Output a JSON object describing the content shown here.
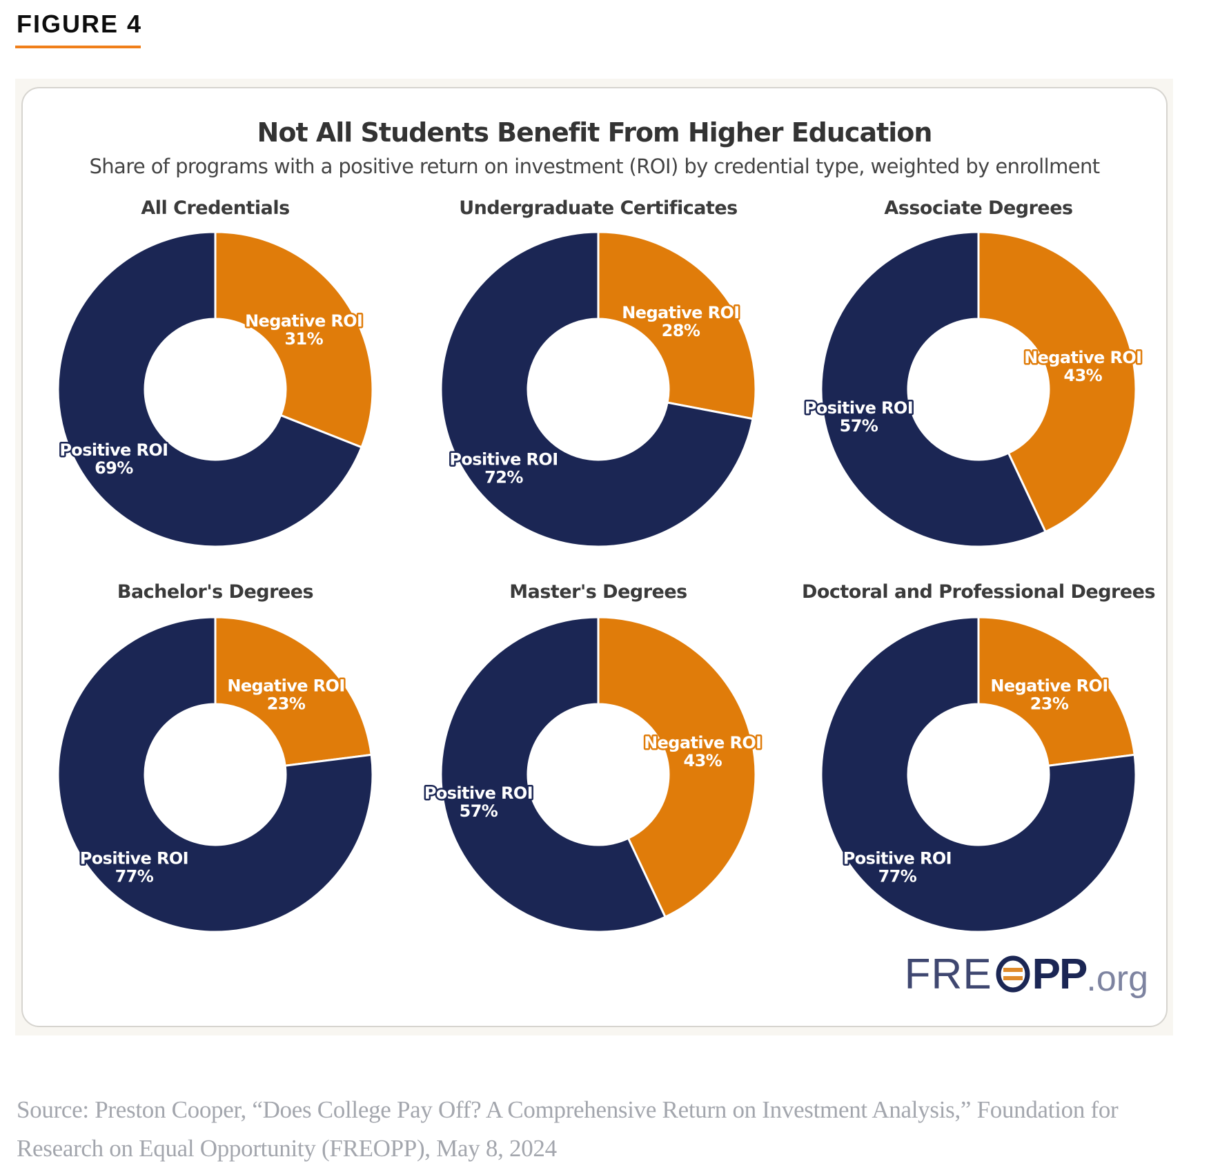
{
  "figure": {
    "label": "FIGURE 4",
    "accent_color": "#f07f1a"
  },
  "chart": {
    "title": "Not All Students Benefit From Higher Education",
    "subtitle": "Share of programs with a positive return on investment (ROI) by credential type, weighted by enrollment"
  },
  "logo": {
    "prefix": "FRE",
    "bold": "PP",
    "suffix": ".org",
    "alt": "FREOPP.org"
  },
  "source": {
    "text": "Source: Preston Cooper, “Does College Pay Off? A Comprehensive Return on Investment Analysis,” Foundation for Research on Equal Opportunity (FREOPP), May 8, 2024"
  },
  "chart_data": {
    "type": "pie",
    "variant": "donut",
    "title": "Not All Students Benefit From Higher Education",
    "subtitle": "Share of programs with a positive return on investment (ROI) by credential type, weighted by enrollment",
    "unit": "%",
    "series_colors": {
      "Negative ROI": "#e07c0a",
      "Positive ROI": "#1b2654"
    },
    "panels": [
      {
        "title": "All Credentials",
        "slices": [
          {
            "label": "Negative ROI",
            "value": 31
          },
          {
            "label": "Positive ROI",
            "value": 69
          }
        ]
      },
      {
        "title": "Undergraduate Certificates",
        "slices": [
          {
            "label": "Negative ROI",
            "value": 28
          },
          {
            "label": "Positive ROI",
            "value": 72
          }
        ]
      },
      {
        "title": "Associate Degrees",
        "slices": [
          {
            "label": "Negative ROI",
            "value": 43
          },
          {
            "label": "Positive ROI",
            "value": 57
          }
        ]
      },
      {
        "title": "Bachelor's Degrees",
        "slices": [
          {
            "label": "Negative ROI",
            "value": 23
          },
          {
            "label": "Positive ROI",
            "value": 77
          }
        ]
      },
      {
        "title": "Master's Degrees",
        "slices": [
          {
            "label": "Negative ROI",
            "value": 43
          },
          {
            "label": "Positive ROI",
            "value": 57
          }
        ]
      },
      {
        "title": "Doctoral and Professional Degrees",
        "slices": [
          {
            "label": "Negative ROI",
            "value": 23
          },
          {
            "label": "Positive ROI",
            "value": 77
          }
        ]
      }
    ]
  }
}
